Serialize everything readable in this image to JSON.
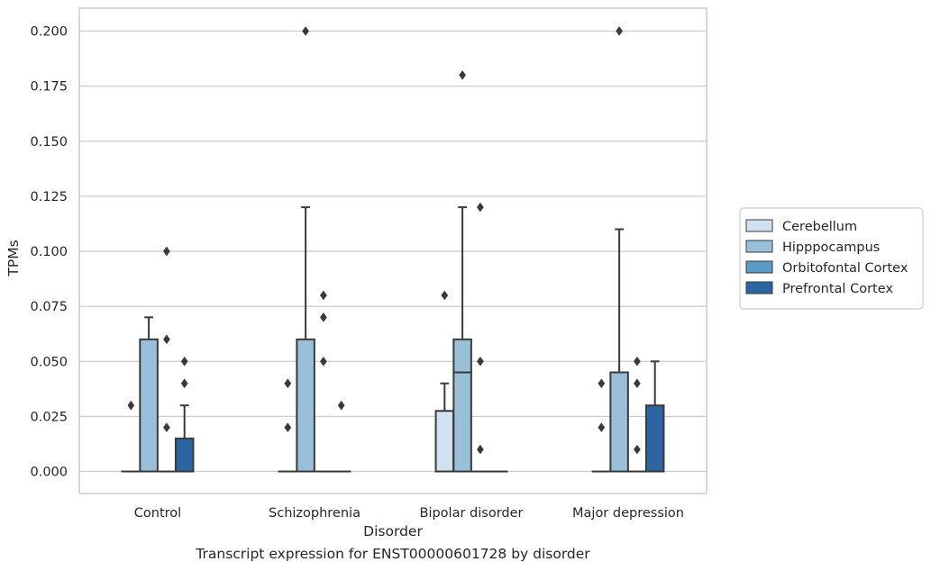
{
  "caption": "Transcript expression for ENST00000601728 by disorder",
  "chart_data": {
    "type": "box",
    "xlabel": "Disorder",
    "ylabel": "TPMs",
    "ylim": [
      -0.01,
      0.21
    ],
    "yticks": [
      "0.000",
      "0.025",
      "0.050",
      "0.075",
      "0.100",
      "0.125",
      "0.150",
      "0.175",
      "0.200"
    ],
    "categories": [
      "Control",
      "Schizophrenia",
      "Bipolar disorder",
      "Major depression"
    ],
    "grid": "horizontal",
    "legend_placement": "right",
    "series": [
      {
        "name": "Cerebellum",
        "color": "#d0e1f2",
        "boxes": [
          {
            "q1": 0.0,
            "median": 0.0,
            "q3": 0.0,
            "whisker_low": 0.0,
            "whisker_high": 0.0,
            "outliers": [
              0.03
            ]
          },
          {
            "q1": 0.0,
            "median": 0.0,
            "q3": 0.0,
            "whisker_low": 0.0,
            "whisker_high": 0.0,
            "outliers": [
              0.02,
              0.04
            ]
          },
          {
            "q1": 0.0,
            "median": 0.0,
            "q3": 0.0275,
            "whisker_low": 0.0,
            "whisker_high": 0.04,
            "outliers": [
              0.08
            ]
          },
          {
            "q1": 0.0,
            "median": 0.0,
            "q3": 0.0,
            "whisker_low": 0.0,
            "whisker_high": 0.0,
            "outliers": [
              0.02,
              0.04
            ]
          }
        ]
      },
      {
        "name": "Hipppocampus",
        "color": "#9ac0d9",
        "boxes": [
          {
            "q1": 0.0,
            "median": 0.0,
            "q3": 0.06,
            "whisker_low": 0.0,
            "whisker_high": 0.07,
            "outliers": []
          },
          {
            "q1": 0.0,
            "median": 0.0,
            "q3": 0.06,
            "whisker_low": 0.0,
            "whisker_high": 0.12,
            "outliers": [
              0.2
            ]
          },
          {
            "q1": 0.0,
            "median": 0.045,
            "q3": 0.06,
            "whisker_low": 0.0,
            "whisker_high": 0.12,
            "outliers": [
              0.18
            ]
          },
          {
            "q1": 0.0,
            "median": 0.0,
            "q3": 0.045,
            "whisker_low": 0.0,
            "whisker_high": 0.11,
            "outliers": [
              0.2
            ]
          }
        ]
      },
      {
        "name": "Orbitofontal Cortex",
        "color": "#5b9ac4",
        "boxes": [
          {
            "q1": 0.0,
            "median": 0.0,
            "q3": 0.0,
            "whisker_low": 0.0,
            "whisker_high": 0.0,
            "outliers": [
              0.02,
              0.06,
              0.1
            ]
          },
          {
            "q1": 0.0,
            "median": 0.0,
            "q3": 0.0,
            "whisker_low": 0.0,
            "whisker_high": 0.0,
            "outliers": [
              0.05,
              0.07,
              0.08
            ]
          },
          {
            "q1": 0.0,
            "median": 0.0,
            "q3": 0.0,
            "whisker_low": 0.0,
            "whisker_high": 0.0,
            "outliers": [
              0.01,
              0.05,
              0.12
            ]
          },
          {
            "q1": 0.0,
            "median": 0.0,
            "q3": 0.0,
            "whisker_low": 0.0,
            "whisker_high": 0.0,
            "outliers": [
              0.01,
              0.04,
              0.05
            ]
          }
        ]
      },
      {
        "name": "Prefrontal Cortex",
        "color": "#2b66a3",
        "boxes": [
          {
            "q1": 0.0,
            "median": 0.0,
            "q3": 0.015,
            "whisker_low": 0.0,
            "whisker_high": 0.03,
            "outliers": [
              0.04,
              0.05
            ]
          },
          {
            "q1": 0.0,
            "median": 0.0,
            "q3": 0.0,
            "whisker_low": 0.0,
            "whisker_high": 0.0,
            "outliers": [
              0.03
            ]
          },
          {
            "q1": 0.0,
            "median": 0.0,
            "q3": 0.0,
            "whisker_low": 0.0,
            "whisker_high": 0.0,
            "outliers": []
          },
          {
            "q1": 0.0,
            "median": 0.0,
            "q3": 0.03,
            "whisker_low": 0.0,
            "whisker_high": 0.05,
            "outliers": []
          }
        ]
      }
    ]
  }
}
